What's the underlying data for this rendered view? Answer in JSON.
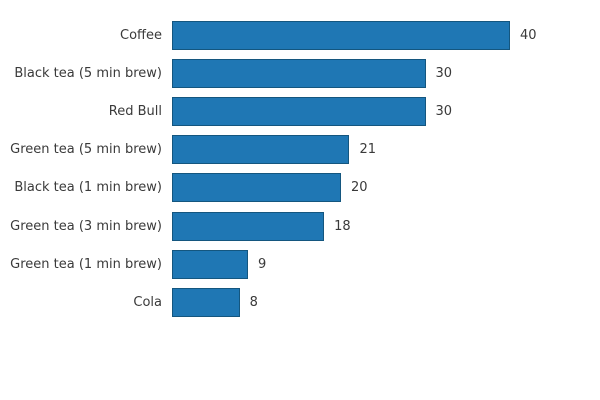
{
  "chart_data": {
    "type": "bar",
    "orientation": "horizontal",
    "title": "",
    "xlabel": "",
    "ylabel": "",
    "categories": [
      "Coffee",
      "Black tea (5 min brew)",
      "Red Bull",
      "Green tea (5 min brew)",
      "Black tea (1 min brew)",
      "Green tea (3 min brew)",
      "Green tea (1 min brew)",
      "Cola"
    ],
    "values": [
      40,
      30,
      30,
      21,
      20,
      18,
      9,
      8
    ],
    "value_labels": [
      "40",
      "30",
      "30",
      "21",
      "20",
      "18",
      "9",
      "8"
    ],
    "xlim": [
      0,
      40
    ],
    "grid": false,
    "axes_visible": false,
    "legend": null,
    "bar_color": "#1f77b4",
    "bar_edge_color": "#14567f",
    "text_color": "#3a3a3a",
    "background_color": "#ffffff"
  }
}
